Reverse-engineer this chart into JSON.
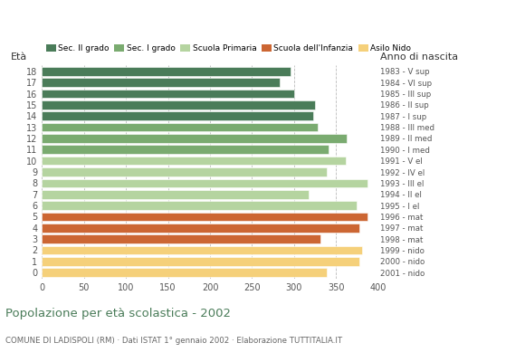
{
  "ages": [
    18,
    17,
    16,
    15,
    14,
    13,
    12,
    11,
    10,
    9,
    8,
    7,
    6,
    5,
    4,
    3,
    2,
    1,
    0
  ],
  "values": [
    296,
    283,
    300,
    325,
    323,
    328,
    363,
    341,
    362,
    339,
    388,
    317,
    375,
    388,
    378,
    332,
    381,
    378,
    339
  ],
  "right_labels": [
    "1983 - V sup",
    "1984 - VI sup",
    "1985 - III sup",
    "1986 - II sup",
    "1987 - I sup",
    "1988 - III med",
    "1989 - II med",
    "1990 - I med",
    "1991 - V el",
    "1992 - IV el",
    "1993 - III el",
    "1994 - II el",
    "1995 - I el",
    "1996 - mat",
    "1997 - mat",
    "1998 - mat",
    "1999 - nido",
    "2000 - nido",
    "2001 - nido"
  ],
  "colors": [
    "#4a7c59",
    "#4a7c59",
    "#4a7c59",
    "#4a7c59",
    "#4a7c59",
    "#7aab70",
    "#7aab70",
    "#7aab70",
    "#b5d4a0",
    "#b5d4a0",
    "#b5d4a0",
    "#b5d4a0",
    "#b5d4a0",
    "#cc6633",
    "#cc6633",
    "#cc6633",
    "#f5d07a",
    "#f5d07a",
    "#f5d07a"
  ],
  "legend_labels": [
    "Sec. II grado",
    "Sec. I grado",
    "Scuola Primaria",
    "Scuola dell'Infanzia",
    "Asilo Nido"
  ],
  "legend_colors": [
    "#4a7c59",
    "#7aab70",
    "#b5d4a0",
    "#cc6633",
    "#f5d07a"
  ],
  "title": "Popolazione per età scolastica - 2002",
  "subtitle": "COMUNE DI LADISPOLI (RM) · Dati ISTAT 1° gennaio 2002 · Elaborazione TUTTITALIA.IT",
  "label_eta": "Età",
  "label_anno": "Anno di nascita",
  "xlim": [
    0,
    400
  ],
  "xticks": [
    0,
    50,
    100,
    150,
    200,
    250,
    300,
    350,
    400
  ],
  "background_color": "#ffffff",
  "grid_color": "#bbbbbb",
  "bar_height": 0.78,
  "title_color": "#4a7c59",
  "subtitle_color": "#666666",
  "tick_label_color": "#555555"
}
